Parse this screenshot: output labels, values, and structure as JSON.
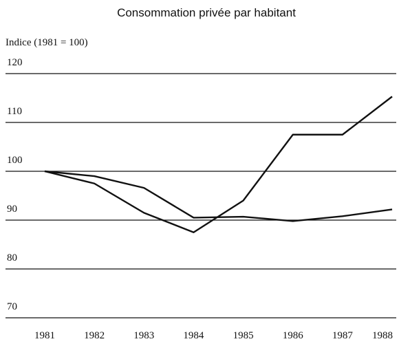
{
  "chart_data": {
    "type": "line",
    "title": "Consommation privée par habitant",
    "y_label": "Indice (1981 = 100)",
    "categories": [
      "1981",
      "1982",
      "1983",
      "1984",
      "1985",
      "1986",
      "1987",
      "1988"
    ],
    "series": [
      {
        "color": "#111111",
        "values": [
          100,
          97.5,
          91.5,
          87.5,
          94,
          107.5,
          107.5,
          115.3
        ]
      },
      {
        "color": "#111111",
        "values": [
          100,
          99,
          96.6,
          90.5,
          90.7,
          89.8,
          90.8,
          92.2
        ]
      }
    ],
    "ylim": [
      70,
      120
    ],
    "yticks": [
      70,
      80,
      90,
      100,
      110,
      120
    ],
    "grid": true
  }
}
